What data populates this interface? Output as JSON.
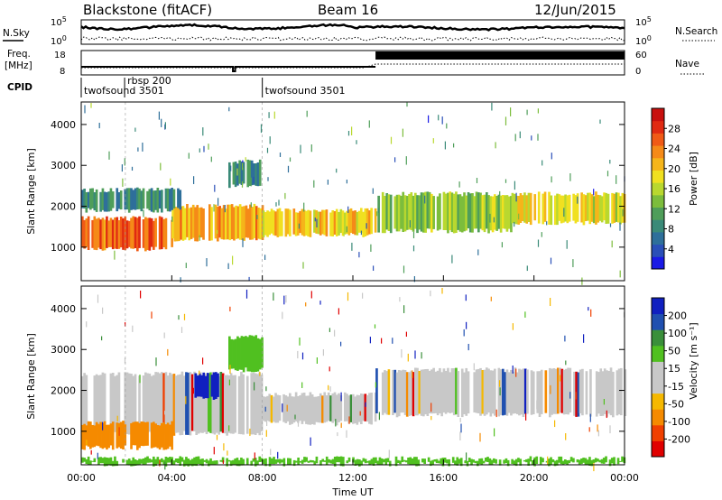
{
  "header": {
    "radar": "Blackstone (fitACF)",
    "beam": "Beam 16",
    "date": "12/Jun/2015"
  },
  "info_panels": {
    "nsky_label": "N.Sky",
    "nsearch_label": "N.Search",
    "freq_label_line1": "Freq.",
    "freq_label_line2": "[MHz]",
    "nave_label": "Nave",
    "cpid_label": "CPID",
    "noise_ticks": [
      "10^5",
      "10^0"
    ],
    "freq_ticks": [
      "18",
      "8"
    ],
    "nave_ticks": [
      "60",
      "0"
    ]
  },
  "cpid_segments": [
    {
      "start": "00:00",
      "end": "01:55",
      "name": "twofsound",
      "id": "3501"
    },
    {
      "start": "01:55",
      "end": "08:00",
      "name": "rbsp",
      "id": "200"
    },
    {
      "start": "08:00",
      "end": "24:00",
      "name": "twofsound",
      "id": "3501"
    }
  ],
  "chart_data": [
    {
      "type": "heatmap",
      "name": "power",
      "xlabel": "",
      "ylabel": "Slant Range [km]",
      "xlim": [
        "00:00",
        "24:00"
      ],
      "ylim": [
        180,
        4550
      ],
      "yticks": [
        1000,
        2000,
        3000,
        4000
      ],
      "colorbar": {
        "label": "Power [dB]",
        "range": [
          0,
          32
        ],
        "ticks": [
          4,
          8,
          12,
          16,
          20,
          24,
          28
        ],
        "colors": [
          "#1a1ae6",
          "#2a4fb8",
          "#2e6f9a",
          "#3a8a78",
          "#4f9e5a",
          "#7cbd3c",
          "#b9d82f",
          "#f0e020",
          "#f5b51a",
          "#f58a18",
          "#f05a16",
          "#e02a12",
          "#c8100e"
        ]
      },
      "bands": [
        {
          "start": 0.0,
          "end": 4.0,
          "range_low": 950,
          "range_high": 1700,
          "power": 26
        },
        {
          "start": 4.0,
          "end": 8.0,
          "range_low": 1200,
          "range_high": 2000,
          "power": 22
        },
        {
          "start": 8.0,
          "end": 13.0,
          "range_low": 1300,
          "range_high": 1900,
          "power": 20
        },
        {
          "start": 0.0,
          "end": 4.5,
          "range_low": 1900,
          "range_high": 2400,
          "power": 8
        },
        {
          "start": 6.5,
          "end": 8.0,
          "range_low": 2500,
          "range_high": 3100,
          "power": 8
        },
        {
          "start": 13.0,
          "end": 19.0,
          "range_low": 1400,
          "range_high": 2300,
          "power": 14
        },
        {
          "start": 19.0,
          "end": 24.0,
          "range_low": 1600,
          "range_high": 2300,
          "power": 18
        }
      ]
    },
    {
      "type": "heatmap",
      "name": "velocity",
      "xlabel": "Time UT",
      "ylabel": "Slant Range [km]",
      "xlim": [
        "00:00",
        "24:00"
      ],
      "ylim": [
        180,
        4550
      ],
      "yticks": [
        1000,
        2000,
        3000,
        4000
      ],
      "xticks": [
        "00:00",
        "04:00",
        "08:00",
        "12:00",
        "16:00",
        "20:00",
        "00:00"
      ],
      "colorbar": {
        "label": "Velocity [m s⁻¹]",
        "ticks": [
          "-200",
          "-100",
          "-50",
          "-15",
          "15",
          "50",
          "100",
          "200"
        ],
        "colors": [
          "#e00000",
          "#f04000",
          "#f58a00",
          "#f5b800",
          "#c8c8c8",
          "#c8c8c8",
          "#50c020",
          "#3a8f3a",
          "#2050b0",
          "#1020c0"
        ]
      },
      "bands": [
        {
          "start": 0.0,
          "end": 8.0,
          "range_low": 950,
          "range_high": 2400,
          "velocity": 0
        },
        {
          "start": 8.0,
          "end": 13.0,
          "range_low": 1200,
          "range_high": 1900,
          "velocity": 0
        },
        {
          "start": 0.0,
          "end": 4.0,
          "range_low": 600,
          "range_high": 1200,
          "velocity": -50
        },
        {
          "start": 5.0,
          "end": 6.0,
          "range_low": 1800,
          "range_high": 2400,
          "velocity": 200
        },
        {
          "start": 6.5,
          "end": 8.0,
          "range_low": 2500,
          "range_high": 3300,
          "velocity": 50
        },
        {
          "start": 13.0,
          "end": 24.0,
          "range_low": 1400,
          "range_high": 2500,
          "velocity": 0
        },
        {
          "start": 0.0,
          "end": 24.0,
          "range_low": 200,
          "range_high": 330,
          "velocity": 50
        }
      ]
    }
  ]
}
